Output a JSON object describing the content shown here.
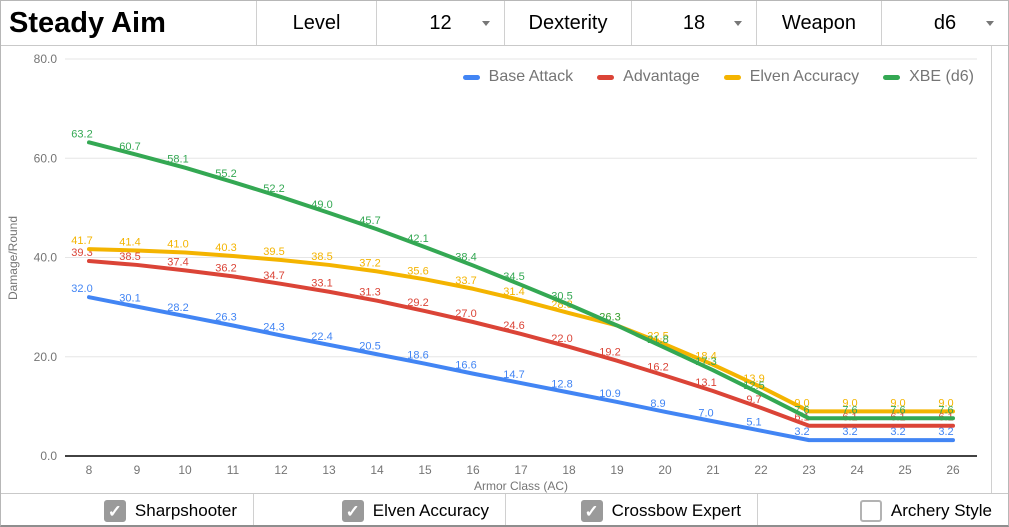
{
  "header": {
    "title": "Steady Aim",
    "fields": [
      {
        "label": "Level",
        "value": "12"
      },
      {
        "label": "Dexterity",
        "value": "18"
      },
      {
        "label": "Weapon",
        "value": "d6"
      }
    ]
  },
  "chart_data": {
    "type": "line",
    "title": "",
    "xlabel": "Armor Class (AC)",
    "ylabel": "Damage/Round",
    "x": [
      8,
      9,
      10,
      11,
      12,
      13,
      14,
      15,
      16,
      17,
      18,
      19,
      20,
      21,
      22,
      23,
      24,
      25,
      26
    ],
    "ylim": [
      0,
      80
    ],
    "yticks": [
      0,
      20,
      40,
      60,
      80
    ],
    "grid": true,
    "legend_position": "top-right",
    "series": [
      {
        "name": "Base Attack",
        "color": "#4285F4",
        "values": [
          32.0,
          30.1,
          28.2,
          26.3,
          24.3,
          22.4,
          20.5,
          18.6,
          16.6,
          14.7,
          12.8,
          10.9,
          8.9,
          7.0,
          5.1,
          3.2,
          3.2,
          3.2,
          3.2
        ]
      },
      {
        "name": "Advantage",
        "color": "#DB4437",
        "values": [
          39.3,
          38.5,
          37.4,
          36.2,
          34.7,
          33.1,
          31.3,
          29.2,
          27.0,
          24.6,
          22.0,
          19.2,
          16.2,
          13.1,
          9.7,
          6.1,
          6.1,
          6.1,
          6.1
        ]
      },
      {
        "name": "Elven Accuracy",
        "color": "#F4B400",
        "values": [
          41.7,
          41.4,
          41.0,
          40.3,
          39.5,
          38.5,
          37.2,
          35.6,
          33.7,
          31.4,
          28.8,
          26.3,
          22.5,
          18.4,
          13.9,
          9.0,
          9.0,
          9.0,
          9.0
        ]
      },
      {
        "name": "XBE (d6)",
        "color": "#34A853",
        "values": [
          63.2,
          60.7,
          58.1,
          55.2,
          52.2,
          49.0,
          45.7,
          42.1,
          38.4,
          34.5,
          30.5,
          26.3,
          21.8,
          17.3,
          12.5,
          7.6,
          7.6,
          7.6,
          7.6
        ]
      }
    ]
  },
  "footer": {
    "checkboxes": [
      {
        "label": "Sharpshooter",
        "checked": true
      },
      {
        "label": "Elven Accuracy",
        "checked": true
      },
      {
        "label": "Crossbow Expert",
        "checked": true
      },
      {
        "label": "Archery Style",
        "checked": false
      }
    ]
  }
}
